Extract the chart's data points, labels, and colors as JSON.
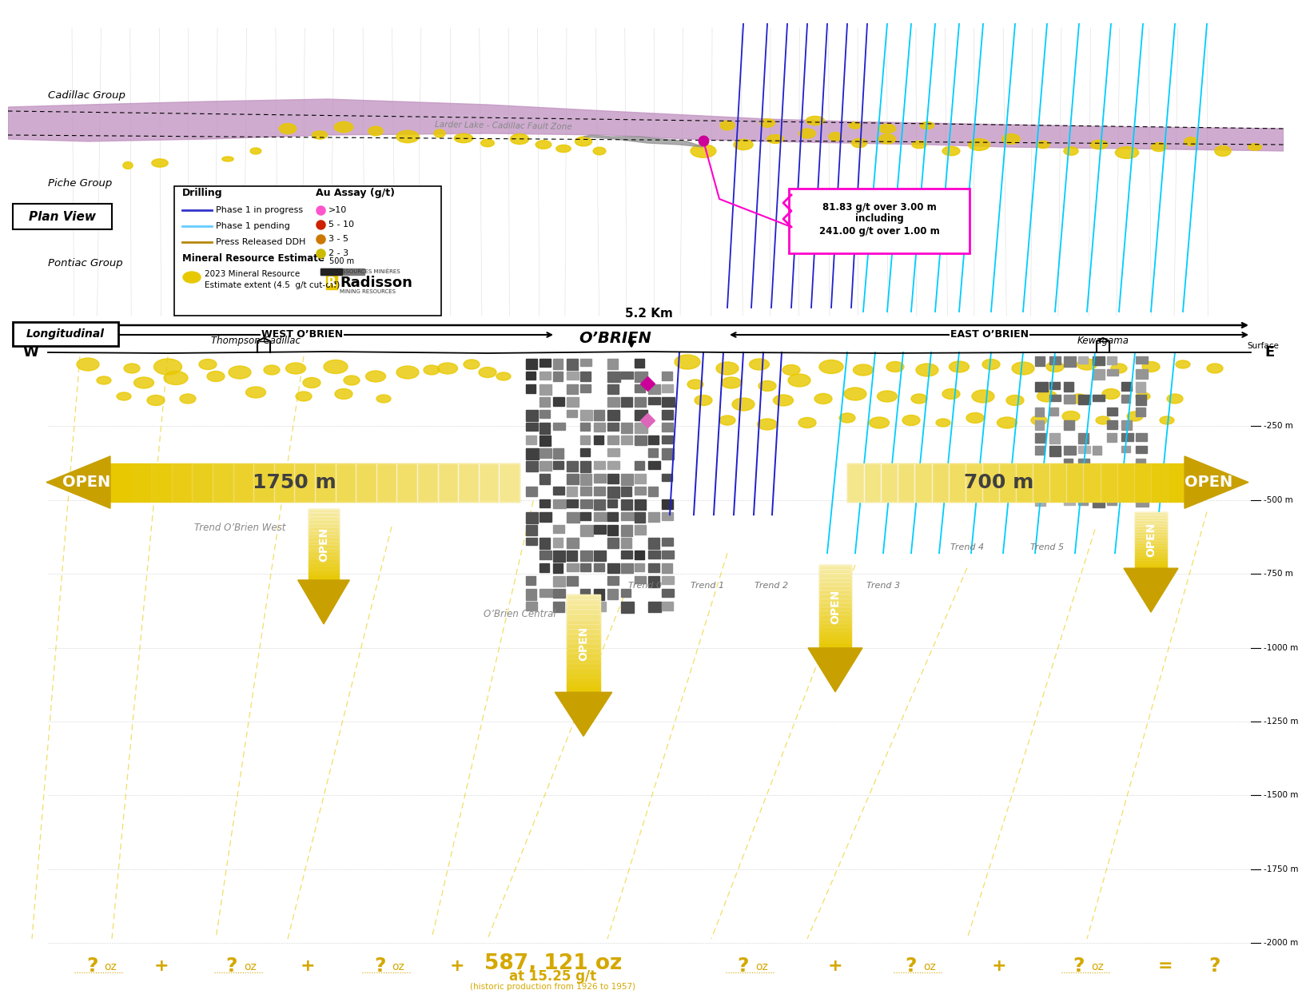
{
  "bg_color": "#ffffff",
  "plan_view_label": "Plan View",
  "longitudinal_label": "Longitudinal",
  "west_obrien": "WEST O’BRIEN",
  "east_obrien": "EAST O’BRIEN",
  "obrien_label": "O’BRIEN",
  "w_label": "W",
  "e_label": "E",
  "surface_label": "Surface",
  "distance_label": "5.2 Km",
  "cadillac_group": "Cadillac Group",
  "piche_group": "Piche Group",
  "pontiac_group": "Pontiac Group",
  "cadillac_fault": "Larder Lake - Cadillac Fault Zone",
  "thompson_cadillac": "Thompson Cadillac",
  "kewagama": "Kewagama",
  "obrien_central": "O’Brien Central",
  "trend_west": "Trend O’Brien West",
  "trend0": "Trend 0",
  "trend1": "Trend 1",
  "trend2": "Trend 2",
  "trend3": "Trend 3",
  "trend4": "Trend 4",
  "trend5": "Trend 5",
  "open_text": "OPEN",
  "label_1750": "1750 m",
  "label_700": "700 m",
  "assay_callout": "81.83 g/t over 3.00 m\nincluding\n241.00 g/t over 1.00 m",
  "bottom_formula": "587, 121 oz",
  "bottom_grade": "at 15.25 g/t",
  "bottom_note": "(historic production from 1926 to 1957)",
  "depth_labels": [
    "-250 m",
    "-500 m",
    "-750 m",
    "-1000 m",
    "-1250 m",
    "-1500 m",
    "-1750 m",
    "-2000 m"
  ],
  "depth_values": [
    -250,
    -500,
    -750,
    -1000,
    -1250,
    -1500,
    -1750,
    -2000
  ],
  "gold_color": "#E8C800",
  "gold_dark": "#C8A000",
  "gold_light": "#FFF0A0",
  "purple_color": "#C090C0",
  "gray_dark": "#404040",
  "magenta_color": "#FF00CC",
  "cyan_color": "#00CCFF",
  "blue_color": "#2020CC",
  "question_color": "#D4A800",
  "legend_drilling_blue": "#3333CC",
  "legend_drilling_cyan": "#66CCFF",
  "legend_drilling_gold": "#B8860B"
}
